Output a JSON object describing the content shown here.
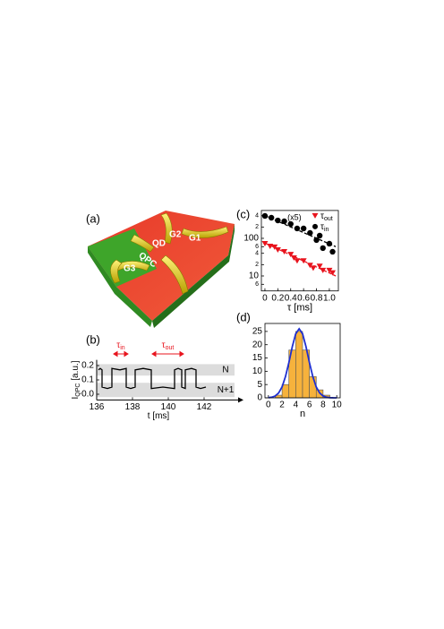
{
  "image_panel": {
    "label": "(a)",
    "gates": [
      "G2",
      "G1",
      "QD",
      "QPC",
      "G3"
    ]
  },
  "chart_data": [
    {
      "type": "line",
      "panel": "(b)",
      "xlabel": "t [ms]",
      "ylabel": "IQPC [a.u.]",
      "annotations": [
        "τin",
        "τout"
      ],
      "bands": [
        {
          "label": "N",
          "range": [
            0.13,
            0.21
          ]
        },
        {
          "label": "N+1",
          "range": [
            -0.02,
            0.08
          ]
        }
      ],
      "x": [
        136.1,
        136.2,
        136.3,
        136.3,
        136.6,
        136.85,
        136.85,
        137.3,
        137.65,
        137.65,
        137.9,
        138.15,
        138.15,
        138.6,
        139.05,
        139.05,
        139.7,
        140.35,
        140.35,
        140.55,
        140.75,
        140.75,
        140.95,
        140.95,
        141.3,
        141.55,
        141.55,
        141.8,
        142.1
      ],
      "values": [
        0.17,
        0.18,
        0.17,
        0.05,
        0.04,
        0.05,
        0.18,
        0.17,
        0.18,
        0.05,
        0.04,
        0.05,
        0.17,
        0.18,
        0.17,
        0.04,
        0.05,
        0.04,
        0.17,
        0.18,
        0.17,
        0.05,
        0.04,
        0.17,
        0.18,
        0.17,
        0.05,
        0.04,
        0.05
      ],
      "color": "#000000",
      "xlim": [
        136,
        143.7
      ],
      "xticks": [
        136,
        138,
        140,
        142
      ],
      "ylim": [
        -0.04,
        0.24
      ],
      "yticks": [
        {
          "value": 0,
          "label": "0.0"
        },
        0.1,
        0.2
      ]
    },
    {
      "type": "scatter",
      "panel": "(c)",
      "xlabel": "τ [ms]",
      "annotations": [
        "(x5)"
      ],
      "log_y": true,
      "legend": "upper right",
      "series": [
        {
          "name": "τout",
          "color": "#e8141e",
          "marker": "triangle",
          "x": [
            0,
            0.08,
            0.15,
            0.2,
            0.3,
            0.4,
            0.45,
            0.5,
            0.6,
            0.7,
            0.75,
            0.85,
            0.9,
            1.0,
            1.05
          ],
          "values": [
            72,
            61,
            58,
            49,
            44,
            37,
            30,
            25,
            25,
            19,
            16,
            18,
            14,
            14,
            12
          ]
        },
        {
          "name": "τin",
          "color": "#000000",
          "marker": "circle",
          "x": [
            0,
            0.1,
            0.2,
            0.3,
            0.4,
            0.5,
            0.6,
            0.7,
            0.8,
            0.85,
            0.9,
            1.0,
            1.05
          ],
          "values": [
            394,
            353,
            299,
            284,
            240,
            183,
            183,
            139,
            90,
            118,
            55,
            72,
            44
          ]
        }
      ],
      "fits": [
        {
          "color": "#000000",
          "x": [
            0,
            1.1
          ],
          "values": [
            400,
            60
          ]
        },
        {
          "color": "#e8141e",
          "x": [
            0,
            1.1
          ],
          "values": [
            75,
            10
          ]
        }
      ],
      "xlim": [
        -0.055,
        1.14
      ],
      "xticks": [
        0,
        0.2,
        0.4,
        0.6,
        0.8,
        {
          "value": 1,
          "label": "1.0"
        }
      ],
      "ylim": [
        4,
        550
      ],
      "yticks": [
        {
          "value": 400,
          "label": "4"
        },
        {
          "value": 200,
          "label": "2"
        },
        100,
        {
          "value": 60,
          "label": "6"
        },
        {
          "value": 40,
          "label": "4"
        },
        {
          "value": 20,
          "label": "2"
        },
        10,
        {
          "value": 6,
          "label": "6"
        }
      ]
    },
    {
      "type": "histogram",
      "panel": "(d)",
      "xlabel": "n",
      "color": "#f6b23c",
      "bins": [
        0,
        1,
        2,
        3,
        4,
        5,
        6,
        7,
        8,
        9,
        10
      ],
      "values": [
        0,
        1,
        5,
        18,
        25,
        18,
        8,
        3,
        1,
        0
      ],
      "fit": {
        "color": "#1f2fd0",
        "x": [
          0,
          0.5,
          1,
          1.5,
          2,
          2.5,
          3,
          3.5,
          4,
          4.5,
          5,
          5.5,
          6,
          6.5,
          7,
          7.5,
          8,
          8.5,
          9,
          9.5,
          10
        ],
        "values": [
          0.065,
          0.23,
          0.7,
          1.82,
          4.1,
          8.0,
          13.3,
          19.3,
          24.1,
          26,
          24.1,
          19.3,
          13.3,
          8.0,
          4.1,
          1.82,
          0.7,
          0.23,
          0.065,
          0.016,
          0.003
        ]
      },
      "xlim": [
        -0.5,
        10.5
      ],
      "xticks": [
        0,
        2,
        4,
        6,
        8,
        10
      ],
      "ylim": [
        0,
        28
      ],
      "yticks": [
        0,
        5,
        10,
        15,
        20,
        25
      ]
    }
  ]
}
